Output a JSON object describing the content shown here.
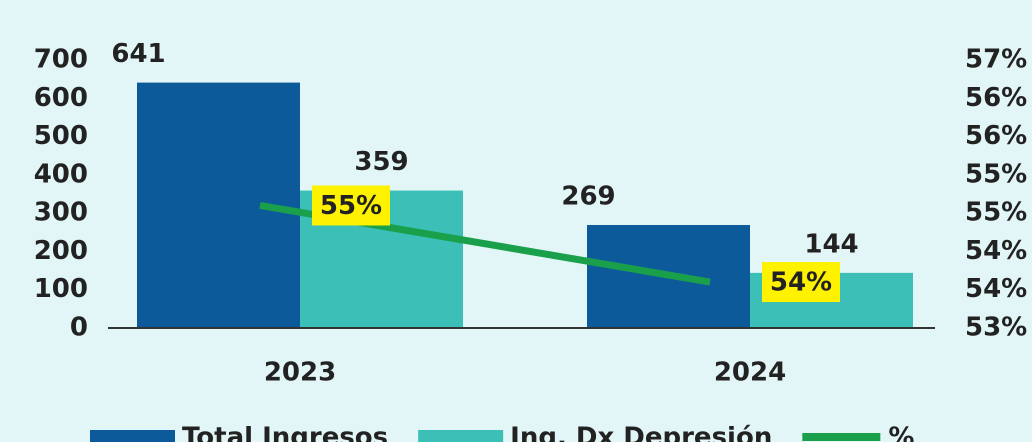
{
  "chart_data": {
    "type": "bar",
    "categories": [
      "2023",
      "2024"
    ],
    "series": [
      {
        "name": "Total Ingresos",
        "color": "#0d5a9a",
        "values": [
          641,
          269
        ],
        "value_labels": [
          "641",
          "269"
        ]
      },
      {
        "name": "Ing. Dx Depresión",
        "color": "#3bbfb6",
        "values": [
          359,
          144
        ],
        "value_labels": [
          "359",
          "144"
        ]
      },
      {
        "name": "%",
        "type": "line",
        "axis": "y2",
        "color": "#1aa04a",
        "values": [
          55,
          54
        ],
        "value_labels": [
          "55%",
          "54%"
        ]
      }
    ],
    "ylim": [
      0,
      700
    ],
    "yticks": [
      0,
      100,
      200,
      300,
      400,
      500,
      600,
      700
    ],
    "y2lim": [
      53.4,
      56.9
    ],
    "y2ticks": [
      {
        "value": 53.4,
        "label": "53%"
      },
      {
        "value": 53.9,
        "label": "54%"
      },
      {
        "value": 54.4,
        "label": "54%"
      },
      {
        "value": 54.9,
        "label": "55%"
      },
      {
        "value": 55.4,
        "label": "55%"
      },
      {
        "value": 55.9,
        "label": "56%"
      },
      {
        "value": 56.4,
        "label": "56%"
      },
      {
        "value": 56.9,
        "label": "57%"
      }
    ],
    "legend": "bottom",
    "grid": false
  }
}
